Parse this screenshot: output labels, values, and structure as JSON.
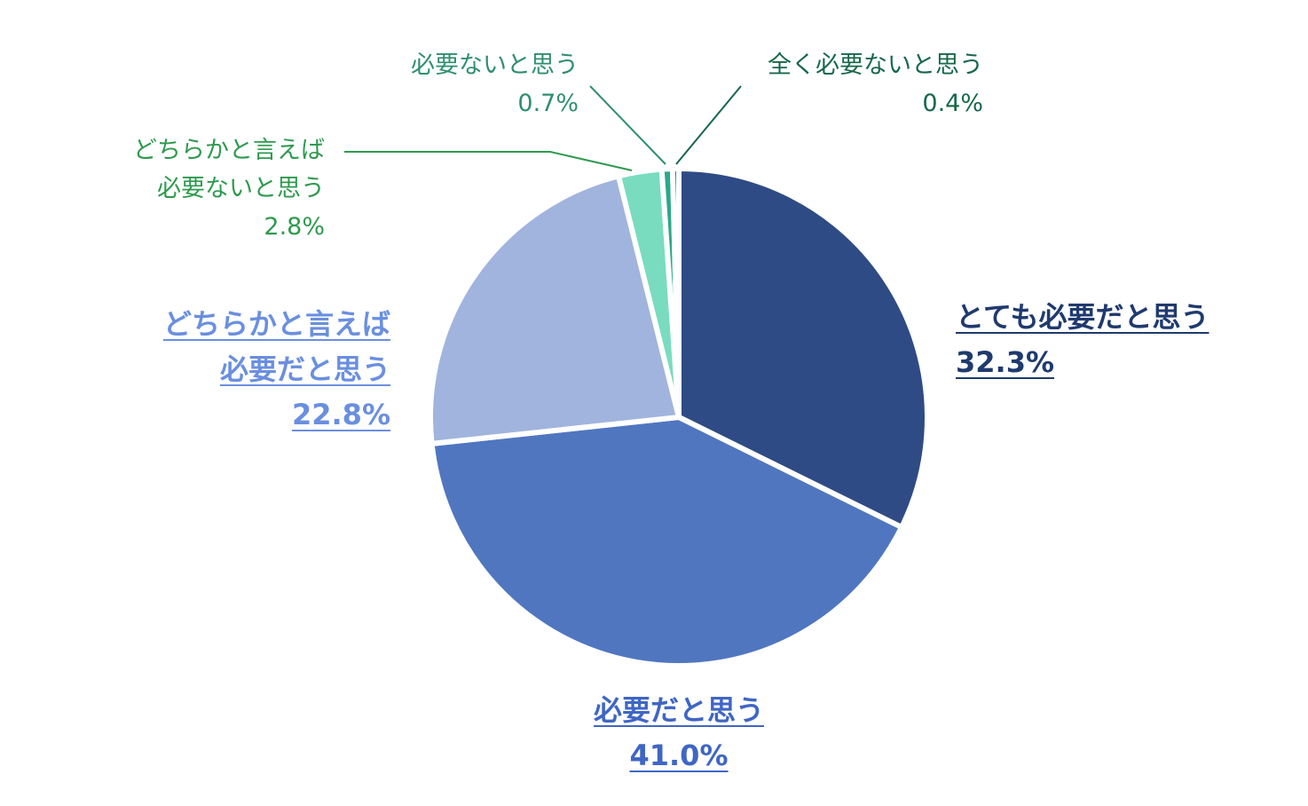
{
  "chart_data": {
    "type": "pie",
    "categories": [
      "とても必要だと思う",
      "必要だと思う",
      "どちらかと言えば\n必要だと思う",
      "どちらかと言えば\n必要ないと思う",
      "必要ないと思う",
      "全く必要ないと思う"
    ],
    "values": [
      32.3,
      41.0,
      22.8,
      2.8,
      0.7,
      0.4
    ],
    "value_labels": [
      "32.3%",
      "41.0%",
      "22.8%",
      "2.8%",
      "0.7%",
      "0.4%"
    ],
    "colors": [
      "#2f4b85",
      "#5076c0",
      "#a1b4de",
      "#79dcbf",
      "#2aa88a",
      "#1a7a55"
    ],
    "label_colors": [
      "#1f3a6e",
      "#3f66c4",
      "#6a8fe0",
      "#2e9a4e",
      "#2f8f6f",
      "#17684a"
    ]
  }
}
